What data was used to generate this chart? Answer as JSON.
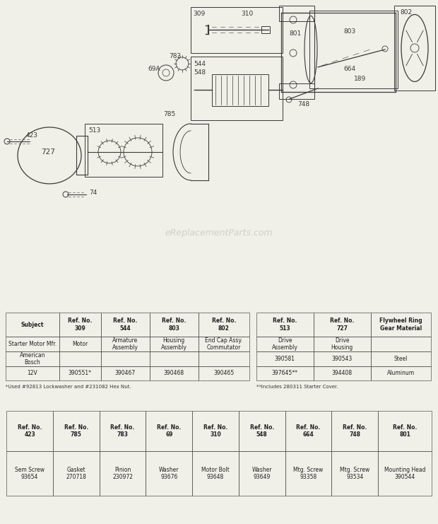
{
  "bg_color": "#f0efe8",
  "watermark": "eReplacementParts.com",
  "table1_headers": [
    "Subject",
    "Ref. No.\n309",
    "Ref. No.\n544",
    "Ref. No.\n803",
    "Ref. No.\n802"
  ],
  "table1_rows": [
    [
      "Starter Motor Mfr.",
      "Motor",
      "Armature\nAssembly",
      "Housing\nAssembly",
      "End Cap Assy.\nCommutator"
    ],
    [
      "American\nBosch",
      "",
      "",
      "",
      ""
    ],
    [
      "12V",
      "390551*",
      "390467",
      "390468",
      "390465"
    ]
  ],
  "table1_footnote": "*Used #92813 Lockwasher and #231082 Hex Nut.",
  "table2_headers": [
    "Ref. No.\n513",
    "Ref. No.\n727",
    "Flywheel Ring\nGear Material"
  ],
  "table2_rows": [
    [
      "Drive\nAssembly",
      "Drive\nHousing",
      ""
    ],
    [
      "390581",
      "390543",
      "Steel"
    ],
    [
      "397645**",
      "394408",
      "Aluminum"
    ]
  ],
  "table2_footnote": "**Includes 280311 Starter Cover.",
  "table3_headers": [
    "Ref. No.\n423",
    "Ref. No.\n785",
    "Ref. No.\n783",
    "Ref. No.\n69",
    "Ref. No.\n310",
    "Ref. No.\n548",
    "Ref. No.\n664",
    "Ref. No.\n748",
    "Ref. No.\n801"
  ],
  "table3_rows": [
    [
      "Sem Screw\n93654",
      "Gasket\n270718",
      "Pinion\n230972",
      "Washer\n93676",
      "Motor Bolt\n93648",
      "Washer\n93649",
      "Mtg. Screw\n93358",
      "Mtg. Screw\n93534",
      "Mounting Head\n390544"
    ]
  ]
}
